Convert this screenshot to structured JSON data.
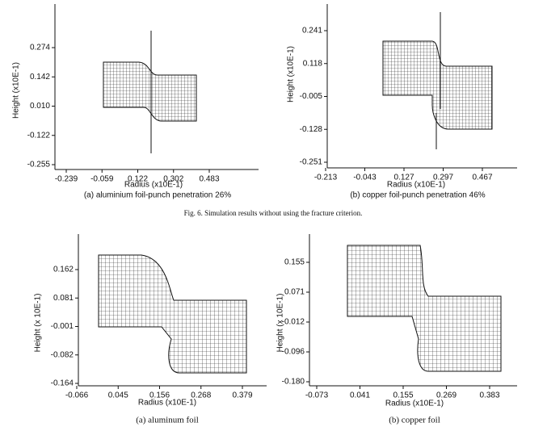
{
  "figure_6": {
    "panels": [
      {
        "y_axis_label": "Height (x10E-1)",
        "x_axis_label": "Radius (x10E-1)",
        "yticks": [
          "0.274",
          "0.142",
          "0.010",
          "-0.122",
          "-0.255"
        ],
        "xticks": [
          "-0.239",
          "-0.059",
          "0.122",
          "0.302",
          "0.483"
        ],
        "caption": "(a) aluminium foil-punch penetration 26%"
      },
      {
        "y_axis_label": "Height (x10E-1)",
        "x_axis_label": "Radius (x10E-1)",
        "yticks": [
          "0.241",
          "0.118",
          "-0.005",
          "-0.128",
          "-0.251"
        ],
        "xticks": [
          "-0.213",
          "-0.043",
          "0.127",
          "0.297",
          "0.467"
        ],
        "caption": "(b) copper foil-punch penetration 46%"
      }
    ],
    "caption": "Fig. 6. Simulation results without using the fracture criterion."
  },
  "figure_7": {
    "panels": [
      {
        "y_axis_label": "Height (x 10E-1)",
        "x_axis_label": "Radius (x10E-1)",
        "yticks": [
          "0.162",
          "0.081",
          "-0.001",
          "-0.082",
          "-0.164"
        ],
        "xticks": [
          "-0.066",
          "0.045",
          "0.156",
          "0.268",
          "0.379"
        ],
        "caption": "(a)  aluminum  foil"
      },
      {
        "y_axis_label": "Height (x 10E-1)",
        "x_axis_label": "Radius (x10E-1)",
        "yticks": [
          "0.155",
          "0.071",
          "-0.012",
          "-0.096",
          "-0.180"
        ],
        "xticks": [
          "-0.073",
          "0.041",
          "0.155",
          "0.269",
          "0.383"
        ],
        "caption": "(b)  copper  foil"
      }
    ]
  }
}
